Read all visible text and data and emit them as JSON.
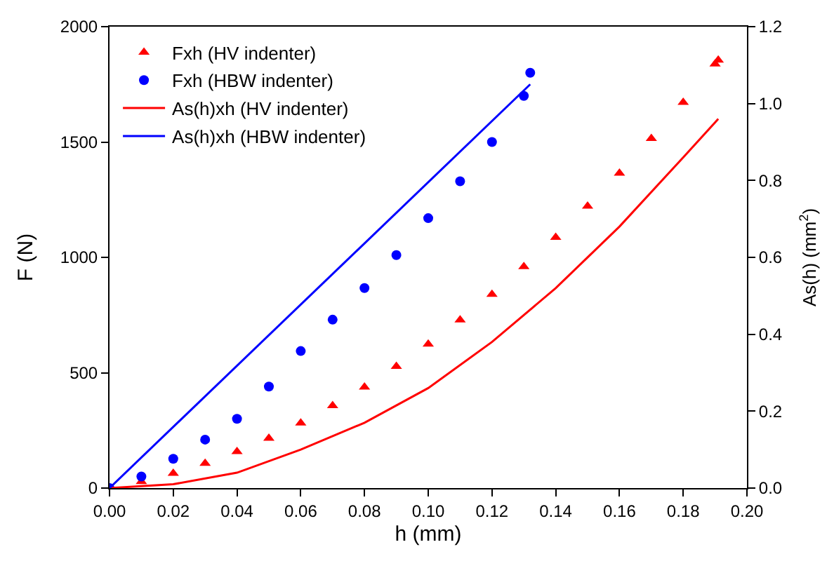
{
  "chart_data": {
    "type": "scatter",
    "xlabel": "h (mm)",
    "ylabel": "F (N)",
    "y2label": "As(h) (mm$^{2}$)",
    "xlim": [
      0,
      0.2
    ],
    "xticks": [
      {
        "value": 0,
        "label": "0.00"
      },
      {
        "value": 0.02,
        "label": "0.02"
      },
      {
        "value": 0.04,
        "label": "0.04"
      },
      {
        "value": 0.06,
        "label": "0.06"
      },
      {
        "value": 0.08,
        "label": "0.08"
      },
      {
        "value": 0.1,
        "label": "0.10"
      },
      {
        "value": 0.12,
        "label": "0.12"
      },
      {
        "value": 0.14,
        "label": "0.14"
      },
      {
        "value": 0.16,
        "label": "0.16"
      },
      {
        "value": 0.18,
        "label": "0.18"
      },
      {
        "value": 0.2,
        "label": "0.20"
      }
    ],
    "ylim": [
      0,
      2000
    ],
    "yticks": [
      0,
      500,
      1000,
      1500,
      2000
    ],
    "y2lim": [
      0,
      1.2
    ],
    "y2ticks": [
      {
        "value": 0,
        "label": "0.0"
      },
      {
        "value": 0.2,
        "label": "0.2"
      },
      {
        "value": 0.4,
        "label": "0.4"
      },
      {
        "value": 0.6,
        "label": "0.6"
      },
      {
        "value": 0.8,
        "label": "0.8"
      },
      {
        "value": 1.0,
        "label": "1.0"
      },
      {
        "value": 1.2,
        "label": "1.2"
      }
    ],
    "legend": "top left",
    "series": [
      {
        "name": "Fxh (HV indenter)",
        "marker": "triangle",
        "color": "#ff0000",
        "x": [
          0.01,
          0.02,
          0.03,
          0.04,
          0.05,
          0.06,
          0.07,
          0.08,
          0.09,
          0.1,
          0.11,
          0.12,
          0.13,
          0.14,
          0.15,
          0.16,
          0.17,
          0.18,
          0.19,
          0.191
        ],
        "values": [
          28,
          64,
          107,
          158,
          216,
          282,
          357,
          438,
          527,
          624,
          729,
          840,
          960,
          1087,
          1222,
          1365,
          1515,
          1672,
          1838,
          1855
        ]
      },
      {
        "name": "Fxh (HBW indenter)",
        "marker": "circle",
        "color": "#0000ff",
        "x": [
          0,
          0.01,
          0.02,
          0.03,
          0.04,
          0.05,
          0.06,
          0.07,
          0.08,
          0.09,
          0.1,
          0.11,
          0.12,
          0.13,
          0.132
        ],
        "values": [
          0,
          50,
          127,
          210,
          300,
          440,
          594,
          730,
          867,
          1010,
          1170,
          1330,
          1500,
          1700,
          1800
        ]
      },
      {
        "name": "As(h)xh (HV indenter)",
        "type": "line",
        "axis": "y2",
        "color": "#ff0000",
        "x": [
          0,
          0.02,
          0.04,
          0.06,
          0.08,
          0.1,
          0.12,
          0.14,
          0.16,
          0.18,
          0.191
        ],
        "values": [
          0,
          0.01,
          0.04,
          0.1,
          0.17,
          0.26,
          0.38,
          0.52,
          0.68,
          0.86,
          0.96
        ]
      },
      {
        "name": "As(h)xh (HBW indenter)",
        "type": "line",
        "axis": "y2",
        "color": "#0000ff",
        "x": [
          0,
          0.132
        ],
        "values": [
          0,
          1.05
        ]
      }
    ]
  }
}
